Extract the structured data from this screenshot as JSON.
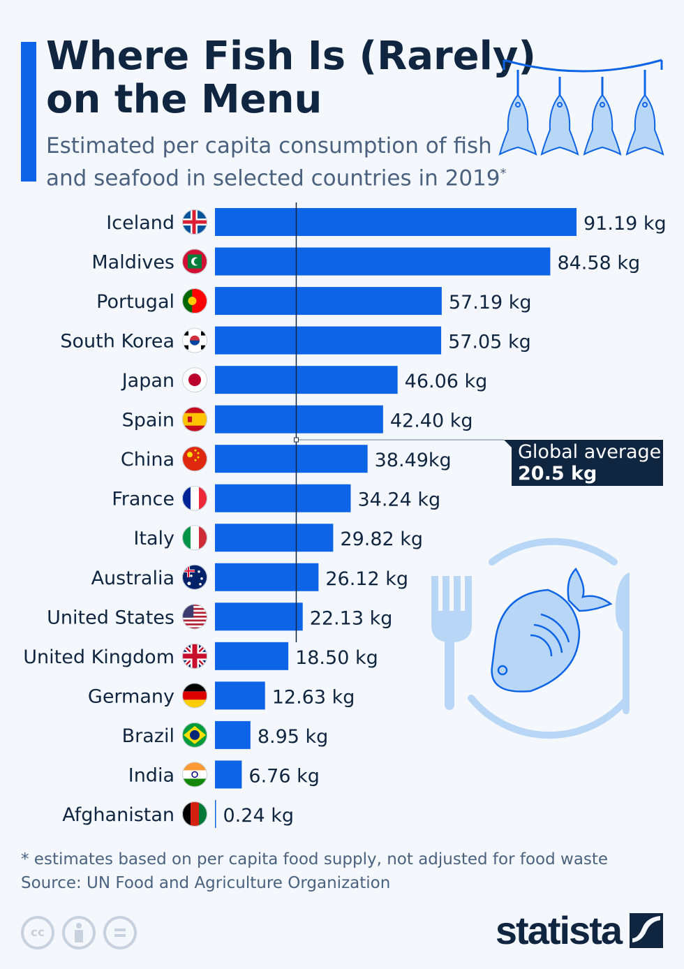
{
  "header": {
    "title_line1": "Where Fish Is (Rarely)",
    "title_line2": "on the Menu",
    "subtitle_line1": "Estimated per capita consumption of fish",
    "subtitle_line2": "and seafood in selected countries in 2019",
    "subtitle_mark": "*"
  },
  "colors": {
    "bar": "#0e64e6",
    "text": "#0f2540",
    "annotation_bg": "#0f2540",
    "illustration": "#b8d6f5",
    "background": "#f4f7fb"
  },
  "chart_data": {
    "type": "bar",
    "orientation": "horizontal",
    "unit": "kg",
    "categories": [
      "Iceland",
      "Maldives",
      "Portugal",
      "South Korea",
      "Japan",
      "Spain",
      "China",
      "France",
      "Italy",
      "Australia",
      "United States",
      "United Kingdom",
      "Germany",
      "Brazil",
      "India",
      "Afghanistan"
    ],
    "values": [
      91.19,
      84.58,
      57.19,
      57.05,
      46.06,
      42.4,
      38.49,
      34.24,
      29.82,
      26.12,
      22.13,
      18.5,
      12.63,
      8.95,
      6.76,
      0.24
    ],
    "value_labels": [
      "91.19 kg",
      "84.58 kg",
      "57.19 kg",
      "57.05 kg",
      "46.06 kg",
      "42.40 kg",
      "38.49kg",
      "34.24 kg",
      "29.82 kg",
      "26.12 kg",
      "22.13 kg",
      "18.50 kg",
      "12.63 kg",
      "8.95 kg",
      "6.76 kg",
      "0.24 kg"
    ],
    "flag_icons": [
      "flag-iceland-icon",
      "flag-maldives-icon",
      "flag-portugal-icon",
      "flag-south-korea-icon",
      "flag-japan-icon",
      "flag-spain-icon",
      "flag-china-icon",
      "flag-france-icon",
      "flag-italy-icon",
      "flag-australia-icon",
      "flag-united-states-icon",
      "flag-united-kingdom-icon",
      "flag-germany-icon",
      "flag-brazil-icon",
      "flag-india-icon",
      "flag-afghanistan-icon"
    ],
    "xlim": [
      0,
      91.19
    ],
    "grid": false,
    "reference_line": {
      "value": 20.5,
      "label_line1": "Global average",
      "label_line2": "20.5 kg"
    }
  },
  "footer": {
    "note": "* estimates based on per capita food supply, not adjusted for food waste",
    "source": "Source: UN Food and Agriculture Organization",
    "license_icons": [
      "cc-icon",
      "attribution-icon",
      "no-derivatives-icon"
    ],
    "cc_label": "cc",
    "brand": "statista"
  }
}
